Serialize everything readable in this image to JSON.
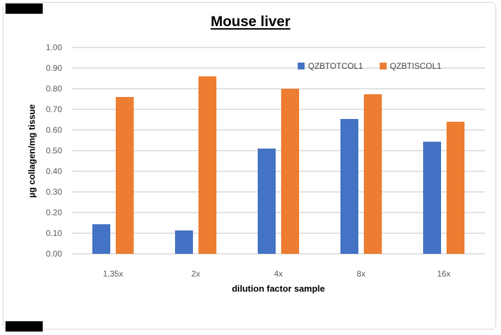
{
  "title": "Mouse liver",
  "colors": {
    "series1": "#4472C4",
    "series2": "#ED7D31",
    "gridline": "#E1E1E1",
    "tick_text": "#595959",
    "title_text": "#000000",
    "frame_border": "#D6D6D6"
  },
  "chart_data": {
    "type": "bar",
    "title": "Mouse liver",
    "categories": [
      "1,35x",
      "2x",
      "4x",
      "8x",
      "16x"
    ],
    "series": [
      {
        "name": "QZBTOTCOL1",
        "color": "#4472C4",
        "values": [
          0.145,
          0.115,
          0.51,
          0.655,
          0.545
        ]
      },
      {
        "name": "QZBTISCOL1",
        "color": "#ED7D31",
        "values": [
          0.76,
          0.86,
          0.8,
          0.775,
          0.64
        ]
      }
    ],
    "xlabel": "dilution factor sample",
    "ylabel": "µg collagen/mg tissue",
    "ylim": [
      0,
      1.0
    ],
    "ytick_step": 0.1,
    "ytick_labels": [
      "0.00",
      "0.10",
      "0.20",
      "0.30",
      "0.40",
      "0.50",
      "0.60",
      "0.70",
      "0.80",
      "0.90",
      "1.00"
    ],
    "grid": true,
    "legend_position": "top-right-inside"
  }
}
